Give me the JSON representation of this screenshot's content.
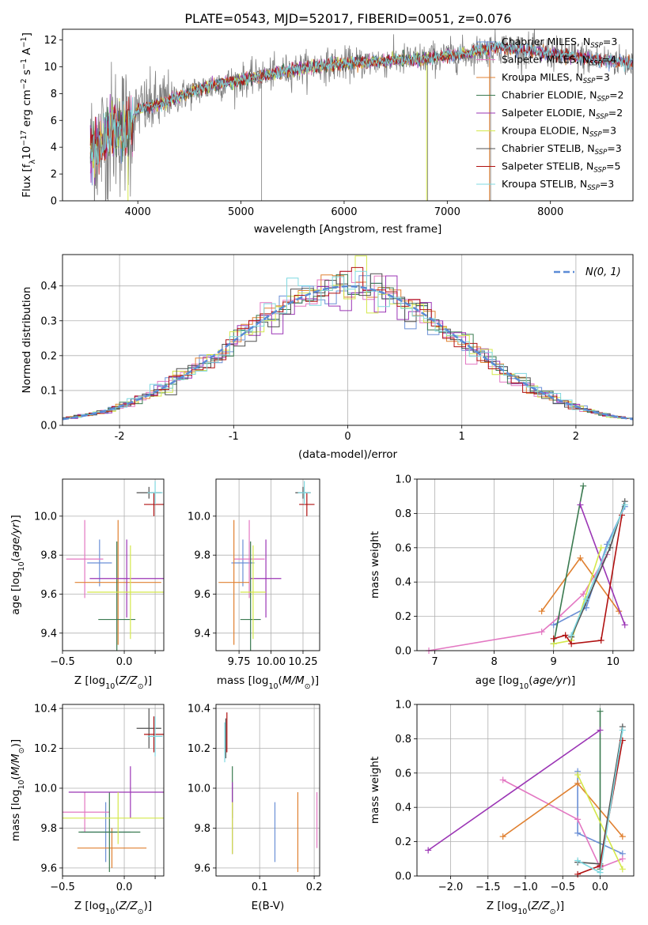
{
  "title": "PLATE=0543, MJD=52017, FIBERID=0051, z=0.076",
  "series_colors": [
    "#ff7f0e"
  ],
  "models": [
    {
      "label": "Chabrier MILES, N_SSP=3",
      "base": "Chabrier MILES, N",
      "sub": "SSP",
      "tail": "=3",
      "color": "#6a8fd6"
    },
    {
      "label": "Salpeter MILES, N_SSP=4",
      "base": "Salpeter MILES, N",
      "sub": "SSP",
      "tail": "=4",
      "color": "#e377c2"
    },
    {
      "label": "Kroupa MILES, N_SSP=3",
      "base": "Kroupa MILES, N",
      "sub": "SSP",
      "tail": "=3",
      "color": "#e08030"
    },
    {
      "label": "Chabrier ELODIE, N_SSP=2",
      "base": "Chabrier ELODIE, N",
      "sub": "SSP",
      "tail": "=2",
      "color": "#3a7a50"
    },
    {
      "label": "Salpeter ELODIE, N_SSP=2",
      "base": "Salpeter ELODIE, N",
      "sub": "SSP",
      "tail": "=2",
      "color": "#9b35b5"
    },
    {
      "label": "Kroupa ELODIE, N_SSP=3",
      "base": "Kroupa ELODIE, N",
      "sub": "SSP",
      "tail": "=3",
      "color": "#d4e84a"
    },
    {
      "label": "Chabrier STELIB, N_SSP=3",
      "base": "Chabrier STELIB, N",
      "sub": "SSP",
      "tail": "=3",
      "color": "#505050"
    },
    {
      "label": "Salpeter STELIB, N_SSP=5",
      "base": "Salpeter STELIB, N",
      "sub": "SSP",
      "tail": "=5",
      "color": "#b01010"
    },
    {
      "label": "Kroupa STELIB, N_SSP=3",
      "base": "Kroupa STELIB, N",
      "sub": "SSP",
      "tail": "=3",
      "color": "#7fd8e0"
    }
  ],
  "chart_data": [
    {
      "id": "spectrum",
      "type": "line",
      "xlabel": "wavelength [Angstrom, rest frame]",
      "ylabel": "Flux [f_λ 10^-17 erg cm^-2 s^-1 A^-1]",
      "xlim": [
        3270,
        8800
      ],
      "ylim": [
        0,
        12.8
      ],
      "xticks": [
        4000,
        5000,
        6000,
        7000,
        8000
      ],
      "yticks": [
        0,
        2,
        4,
        6,
        8,
        10,
        12
      ],
      "grid": false,
      "legend": "top-right",
      "spectrum_knots": [
        [
          3540,
          3.6
        ],
        [
          3700,
          4.7
        ],
        [
          3800,
          5.6
        ],
        [
          3900,
          5.1
        ],
        [
          4000,
          6.8
        ],
        [
          4200,
          7.2
        ],
        [
          4400,
          7.8
        ],
        [
          4600,
          8.3
        ],
        [
          4800,
          8.7
        ],
        [
          5000,
          9.0
        ],
        [
          5200,
          9.3
        ],
        [
          5500,
          9.8
        ],
        [
          5800,
          10.1
        ],
        [
          6000,
          10.2
        ],
        [
          6300,
          10.4
        ],
        [
          6600,
          10.5
        ],
        [
          6900,
          10.7
        ],
        [
          7200,
          11.0
        ],
        [
          7500,
          11.5
        ],
        [
          7800,
          11.2
        ],
        [
          8100,
          10.9
        ],
        [
          8400,
          10.6
        ],
        [
          8800,
          10.3
        ]
      ]
    },
    {
      "id": "residuals",
      "type": "histogram",
      "xlabel": "(data-model)/error",
      "ylabel": "Normed distribution",
      "xlim": [
        -2.5,
        2.5
      ],
      "ylim": [
        0,
        0.49
      ],
      "xticks": [
        -2,
        -1,
        0,
        1,
        2
      ],
      "yticks": [
        0,
        0.1,
        0.2,
        0.3,
        0.4
      ],
      "grid": true,
      "legend": "top-right",
      "reference": "N(0,1)"
    },
    {
      "id": "age_vs_Z",
      "type": "errorbar",
      "xlabel": "Z [log10(Z/Z_sun)]",
      "ylabel": "age [log10(age/yr)]",
      "xlim": [
        -0.5,
        0.32
      ],
      "ylim": [
        9.31,
        10.19
      ],
      "xticks": [
        -0.5,
        0,
        0.25
      ],
      "xticklabels": [
        "−0.5",
        "0.0",
        ""
      ],
      "yticks": [
        9.4,
        9.6,
        9.8,
        10.0
      ],
      "grid": true,
      "points": [
        {
          "x": -0.2,
          "y": 9.76,
          "xerr": 0.1,
          "yerr": 0.12
        },
        {
          "x": -0.32,
          "y": 9.78,
          "xerr": 0.15,
          "yerr": 0.2
        },
        {
          "x": -0.05,
          "y": 9.66,
          "xerr": 0.35,
          "yerr": 0.32
        },
        {
          "x": -0.06,
          "y": 9.47,
          "xerr": 0.15,
          "yerr": 0.4
        },
        {
          "x": 0.02,
          "y": 9.68,
          "xerr": 0.3,
          "yerr": 0.2
        },
        {
          "x": 0.05,
          "y": 9.61,
          "xerr": 0.35,
          "yerr": 0.24
        },
        {
          "x": 0.2,
          "y": 10.12,
          "xerr": 0.1,
          "yerr": 0.03
        },
        {
          "x": 0.24,
          "y": 10.06,
          "xerr": 0.08,
          "yerr": 0.06
        },
        {
          "x": 0.25,
          "y": 10.12,
          "xerr": 0.06,
          "yerr": 0.06
        }
      ]
    },
    {
      "id": "age_vs_mass",
      "type": "errorbar",
      "xlabel": "mass [log10(M/M_sun)]",
      "xlim": [
        9.57,
        10.38
      ],
      "ylim": [
        9.31,
        10.19
      ],
      "xticks": [
        9.75,
        10.0,
        10.25
      ],
      "xticklabels": [
        "9.75",
        "10.00",
        "10.25"
      ],
      "yticks": [
        9.4,
        9.6,
        9.8,
        10.0
      ],
      "grid": true,
      "points": [
        {
          "x": 9.78,
          "y": 9.76,
          "xerr": 0.09,
          "yerr": 0.12
        },
        {
          "x": 9.83,
          "y": 9.78,
          "xerr": 0.12,
          "yerr": 0.2
        },
        {
          "x": 9.71,
          "y": 9.66,
          "xerr": 0.12,
          "yerr": 0.32
        },
        {
          "x": 9.84,
          "y": 9.47,
          "xerr": 0.08,
          "yerr": 0.4
        },
        {
          "x": 9.96,
          "y": 9.68,
          "xerr": 0.12,
          "yerr": 0.2
        },
        {
          "x": 9.86,
          "y": 9.61,
          "xerr": 0.1,
          "yerr": 0.24
        },
        {
          "x": 10.25,
          "y": 10.12,
          "xerr": 0.06,
          "yerr": 0.03
        },
        {
          "x": 10.28,
          "y": 10.06,
          "xerr": 0.06,
          "yerr": 0.06
        },
        {
          "x": 10.26,
          "y": 10.12,
          "xerr": 0.05,
          "yerr": 0.06
        }
      ]
    },
    {
      "id": "weight_vs_age",
      "type": "line",
      "xlabel": "age [log10(age/yr)]",
      "ylabel": "mass weight",
      "xlim": [
        6.7,
        10.35
      ],
      "ylim": [
        0,
        1.0
      ],
      "xticks": [
        7,
        8,
        9,
        10
      ],
      "yticks": [
        0,
        0.2,
        0.4,
        0.6,
        0.8,
        1.0
      ],
      "grid": true,
      "series": [
        {
          "points": [
            [
              9.0,
              0.15
            ],
            [
              9.55,
              0.25
            ],
            [
              9.9,
              0.62
            ],
            [
              10.2,
              0.84
            ]
          ]
        },
        {
          "points": [
            [
              6.9,
              0.0
            ],
            [
              8.8,
              0.11
            ],
            [
              9.1,
              0.2
            ],
            [
              9.5,
              0.33
            ],
            [
              9.9,
              0.56
            ]
          ]
        },
        {
          "points": [
            [
              8.8,
              0.23
            ],
            [
              9.45,
              0.54
            ],
            [
              10.1,
              0.23
            ]
          ]
        },
        {
          "points": [
            [
              9.0,
              0.04
            ],
            [
              9.5,
              0.96
            ]
          ]
        },
        {
          "points": [
            [
              9.45,
              0.85
            ],
            [
              10.2,
              0.15
            ]
          ]
        },
        {
          "points": [
            [
              9.0,
              0.04
            ],
            [
              9.3,
              0.06
            ],
            [
              9.8,
              0.6
            ]
          ]
        },
        {
          "points": [
            [
              9.3,
              0.08
            ],
            [
              9.95,
              0.6
            ],
            [
              10.2,
              0.87
            ]
          ]
        },
        {
          "points": [
            [
              9.0,
              0.07
            ],
            [
              9.2,
              0.09
            ],
            [
              9.3,
              0.04
            ],
            [
              9.8,
              0.06
            ],
            [
              10.15,
              0.79
            ]
          ]
        },
        {
          "points": [
            [
              9.3,
              0.09
            ],
            [
              9.55,
              0.3
            ],
            [
              10.2,
              0.85
            ]
          ]
        }
      ]
    },
    {
      "id": "mass_vs_Z",
      "type": "errorbar",
      "xlabel": "Z [log10(Z/Z_sun)]",
      "ylabel": "mass [log10(M/M_sun)]",
      "xlim": [
        -0.5,
        0.32
      ],
      "ylim": [
        9.56,
        10.42
      ],
      "xticks": [
        -0.5,
        0,
        0.25
      ],
      "xticklabels": [
        "−0.5",
        "0.0",
        ""
      ],
      "yticks": [
        9.6,
        9.8,
        10.0,
        10.2,
        10.4
      ],
      "grid": true,
      "points": [
        {
          "x": -0.15,
          "y": 9.78,
          "xerr": 0.2,
          "yerr": 0.15
        },
        {
          "x": -0.32,
          "y": 9.88,
          "xerr": 0.2,
          "yerr": 0.1
        },
        {
          "x": -0.1,
          "y": 9.7,
          "xerr": 0.28,
          "yerr": 0.1
        },
        {
          "x": -0.12,
          "y": 9.78,
          "xerr": 0.25,
          "yerr": 0.2
        },
        {
          "x": 0.05,
          "y": 9.98,
          "xerr": 0.5,
          "yerr": 0.13
        },
        {
          "x": -0.05,
          "y": 9.85,
          "xerr": 0.45,
          "yerr": 0.13
        },
        {
          "x": 0.2,
          "y": 10.3,
          "xerr": 0.1,
          "yerr": 0.1
        },
        {
          "x": 0.24,
          "y": 10.27,
          "xerr": 0.08,
          "yerr": 0.09
        },
        {
          "x": 0.25,
          "y": 10.26,
          "xerr": 0.06,
          "yerr": 0.1
        }
      ]
    },
    {
      "id": "mass_vs_ebv",
      "type": "errorbar",
      "xlabel": "E(B-V)",
      "xlim": [
        0.02,
        0.21
      ],
      "ylim": [
        9.56,
        10.42
      ],
      "xticks": [
        0.1,
        0.2
      ],
      "xticklabels": [
        "0.1",
        "0.2"
      ],
      "yticks": [
        9.6,
        9.8,
        10.0,
        10.2,
        10.4
      ],
      "grid": true,
      "points": [
        {
          "x": 0.128,
          "y": 9.78,
          "xerr": 0,
          "yerr": 0.15
        },
        {
          "x": 0.205,
          "y": 9.84,
          "xerr": 0,
          "yerr": 0.14
        },
        {
          "x": 0.17,
          "y": 9.78,
          "xerr": 0,
          "yerr": 0.2
        },
        {
          "x": 0.05,
          "y": 9.98,
          "xerr": 0,
          "yerr": 0.13
        },
        {
          "x": 0.05,
          "y": 9.85,
          "xerr": 0,
          "yerr": 0.18
        },
        {
          "x": 0.05,
          "y": 9.8,
          "xerr": 0,
          "yerr": 0.13
        },
        {
          "x": 0.038,
          "y": 10.25,
          "xerr": 0,
          "yerr": 0.1
        },
        {
          "x": 0.04,
          "y": 10.28,
          "xerr": 0,
          "yerr": 0.1
        },
        {
          "x": 0.036,
          "y": 10.23,
          "xerr": 0,
          "yerr": 0.1
        }
      ]
    },
    {
      "id": "weight_vs_Z",
      "type": "line",
      "xlabel": "Z [log10(Z/Z_sun)]",
      "ylabel": "mass weight",
      "xlim": [
        -2.45,
        0.45
      ],
      "ylim": [
        0,
        1.0
      ],
      "xticks": [
        -2.0,
        -1.5,
        -1.0,
        -0.5,
        0.0
      ],
      "yticks": [
        0,
        0.2,
        0.4,
        0.6,
        0.8,
        1.0
      ],
      "grid": true,
      "series": [
        {
          "points": [
            [
              -0.3,
              0.61
            ],
            [
              -0.3,
              0.25
            ],
            [
              0.3,
              0.13
            ]
          ]
        },
        {
          "points": [
            [
              -1.3,
              0.56
            ],
            [
              -0.3,
              0.33
            ],
            [
              0.0,
              0.05
            ],
            [
              0.3,
              0.1
            ]
          ]
        },
        {
          "points": [
            [
              -1.3,
              0.23
            ],
            [
              -0.3,
              0.54
            ],
            [
              0.3,
              0.23
            ]
          ]
        },
        {
          "points": [
            [
              0.0,
              0.04
            ],
            [
              0.0,
              0.96
            ]
          ]
        },
        {
          "points": [
            [
              -2.3,
              0.15
            ],
            [
              0.0,
              0.85
            ]
          ]
        },
        {
          "points": [
            [
              -0.3,
              0.59
            ],
            [
              0.3,
              0.04
            ]
          ]
        },
        {
          "points": [
            [
              -0.3,
              0.08
            ],
            [
              0.0,
              0.07
            ],
            [
              0.3,
              0.87
            ]
          ]
        },
        {
          "points": [
            [
              -0.3,
              0.01
            ],
            [
              0.0,
              0.06
            ],
            [
              0.3,
              0.79
            ]
          ]
        },
        {
          "points": [
            [
              -0.3,
              0.09
            ],
            [
              0.0,
              0.02
            ],
            [
              0.3,
              0.85
            ]
          ]
        }
      ]
    }
  ]
}
